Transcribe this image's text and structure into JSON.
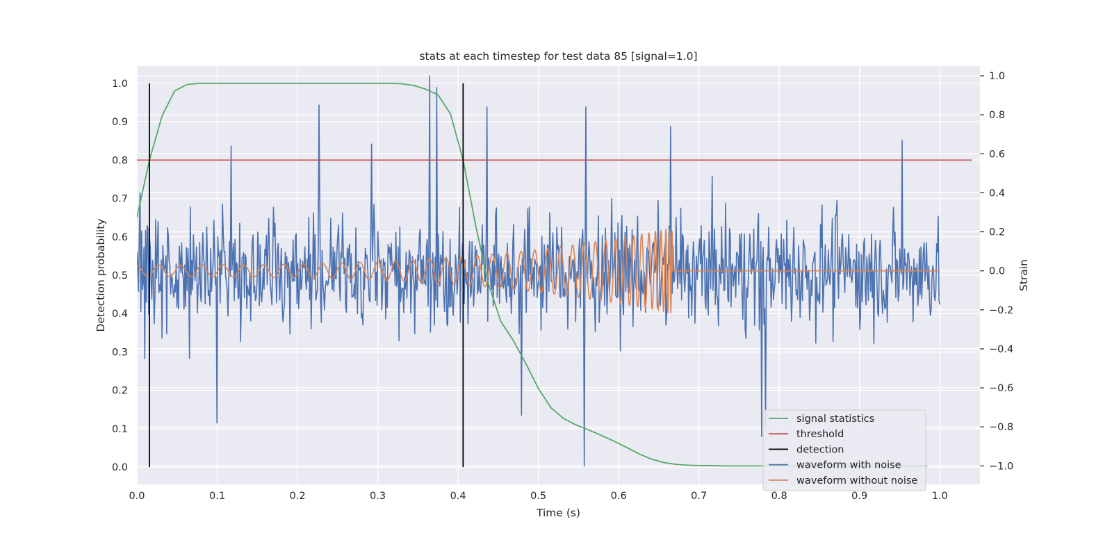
{
  "chart_data": {
    "type": "line",
    "title": "stats at each timestep for test data 85 [signal=1.0]",
    "xlabel": "Time (s)",
    "ylabel": "Detection probability",
    "y2label": "Strain",
    "xlim": [
      0.0,
      1.05
    ],
    "ylim": [
      -0.045,
      1.045
    ],
    "y2lim": [
      -1.095,
      1.05
    ],
    "xticks": [
      "0.0",
      "0.1",
      "0.2",
      "0.3",
      "0.4",
      "0.5",
      "0.6",
      "0.7",
      "0.8",
      "0.9",
      "1.0"
    ],
    "yticks": [
      "0.0",
      "0.1",
      "0.2",
      "0.3",
      "0.4",
      "0.5",
      "0.6",
      "0.7",
      "0.8",
      "0.9",
      "1.0"
    ],
    "y2ticks": [
      "−1.0",
      "−0.8",
      "−0.6",
      "−0.4",
      "−0.2",
      "0.0",
      "0.2",
      "0.4",
      "0.6",
      "0.8",
      "1.0"
    ],
    "grid": true,
    "legend_position": "lower-right",
    "colors": {
      "plot_background": "#eaeaf2",
      "grid": "#ffffff",
      "signal_statistics": "#55a868",
      "threshold": "#c44e52",
      "detection": "#000000",
      "waveform_with_noise": "#4c72b0",
      "waveform_without_noise": "#dd8452"
    },
    "series": [
      {
        "name": "signal statistics",
        "axis": "left",
        "x": [
          0.0,
          0.0156,
          0.0313,
          0.0469,
          0.0625,
          0.0781,
          0.0938,
          0.1094,
          0.125,
          0.1406,
          0.1563,
          0.1719,
          0.1875,
          0.2031,
          0.2188,
          0.2344,
          0.25,
          0.2656,
          0.2813,
          0.2969,
          0.3125,
          0.3281,
          0.3438,
          0.3594,
          0.375,
          0.3906,
          0.4063,
          0.4219,
          0.4375,
          0.4531,
          0.4688,
          0.4844,
          0.5,
          0.5156,
          0.5313,
          0.5469,
          0.5625,
          0.5781,
          0.5938,
          0.6094,
          0.625,
          0.6406,
          0.6563,
          0.6719,
          0.6875,
          0.7031,
          0.7188,
          0.7344,
          0.75,
          0.7656,
          0.7813,
          0.7969,
          0.8125,
          0.8281,
          0.8438,
          0.8594,
          0.875,
          0.8906,
          0.9063,
          0.9219,
          0.9375,
          0.9531,
          0.9688,
          0.9844
        ],
        "values": [
          0.65,
          0.8,
          0.915,
          0.98,
          0.997,
          1.0,
          1.0,
          1.0,
          1.0,
          1.0,
          1.0,
          1.0,
          1.0,
          1.0,
          1.0,
          1.0,
          1.0,
          1.0,
          1.0,
          1.0,
          1.0,
          0.999,
          0.995,
          0.985,
          0.97,
          0.92,
          0.8,
          0.63,
          0.48,
          0.38,
          0.33,
          0.27,
          0.205,
          0.155,
          0.127,
          0.11,
          0.097,
          0.083,
          0.068,
          0.052,
          0.035,
          0.021,
          0.012,
          0.007,
          0.005,
          0.004,
          0.004,
          0.003,
          0.003,
          0.003,
          0.003,
          0.003,
          0.003,
          0.003,
          0.003,
          0.003,
          0.003,
          0.003,
          0.003,
          0.003,
          0.003,
          0.003,
          0.003,
          0.003
        ]
      },
      {
        "name": "threshold",
        "axis": "left",
        "x": [
          0.0,
          1.04
        ],
        "values": [
          0.8,
          0.8
        ]
      },
      {
        "name": "detection",
        "axis": "left",
        "kind": "vlines",
        "x": [
          0.0156,
          0.4063
        ],
        "range": [
          0.0,
          1.0
        ]
      },
      {
        "name": "waveform with noise",
        "axis": "right",
        "x_range": [
          0.0,
          1.0
        ],
        "n_points": 1024,
        "values_min": -1.0,
        "values_max": 1.0,
        "peaks": [
          {
            "x": 0.004,
            "value": 0.4
          },
          {
            "x": 0.01,
            "value": -0.45
          },
          {
            "x": 0.1,
            "value": -0.78
          },
          {
            "x": 0.117,
            "value": 0.64
          },
          {
            "x": 0.227,
            "value": 0.85
          },
          {
            "x": 0.292,
            "value": 0.65
          },
          {
            "x": 0.365,
            "value": 1.0
          },
          {
            "x": 0.373,
            "value": 0.94
          },
          {
            "x": 0.436,
            "value": 0.84
          },
          {
            "x": 0.479,
            "value": -0.74
          },
          {
            "x": 0.557,
            "value": -1.0
          },
          {
            "x": 0.559,
            "value": 0.84
          },
          {
            "x": 0.665,
            "value": 0.74
          },
          {
            "x": 0.778,
            "value": -0.85
          },
          {
            "x": 0.783,
            "value": -0.8
          },
          {
            "x": 0.953,
            "value": 0.67
          }
        ]
      },
      {
        "name": "waveform without noise",
        "axis": "right",
        "x_range": [
          0.0,
          0.67
        ],
        "zero_after": 1.0,
        "amplitude_start": 0.03,
        "amplitude_end": 0.22,
        "frequency_start_hz": 36,
        "merger_time": 0.667
      }
    ]
  }
}
